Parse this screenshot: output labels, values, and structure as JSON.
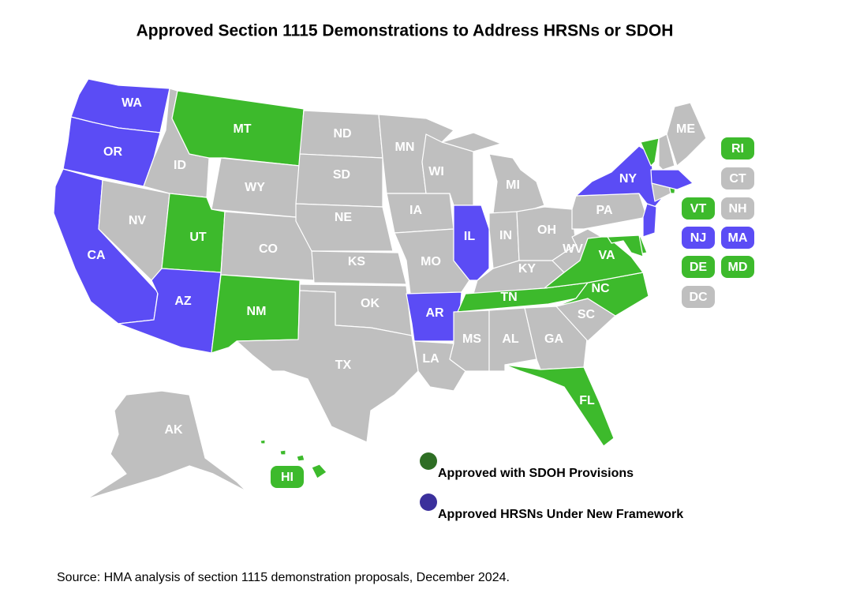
{
  "title": "Approved Section 1115 Demonstrations to Address HRSNs or SDOH",
  "status_colors": {
    "sdoh": "#3dba2c",
    "hrsn": "#5b4cf5",
    "none": "#bfbfbf"
  },
  "states": [
    {
      "name": "WA",
      "status": "hrsn"
    },
    {
      "name": "OR",
      "status": "hrsn"
    },
    {
      "name": "CA",
      "status": "hrsn"
    },
    {
      "name": "NV",
      "status": "none"
    },
    {
      "name": "ID",
      "status": "none"
    },
    {
      "name": "MT",
      "status": "sdoh"
    },
    {
      "name": "WY",
      "status": "none"
    },
    {
      "name": "UT",
      "status": "sdoh"
    },
    {
      "name": "CO",
      "status": "none"
    },
    {
      "name": "AZ",
      "status": "hrsn"
    },
    {
      "name": "NM",
      "status": "sdoh"
    },
    {
      "name": "ND",
      "status": "none"
    },
    {
      "name": "SD",
      "status": "none"
    },
    {
      "name": "NE",
      "status": "none"
    },
    {
      "name": "KS",
      "status": "none"
    },
    {
      "name": "OK",
      "status": "none"
    },
    {
      "name": "TX",
      "status": "none"
    },
    {
      "name": "MN",
      "status": "none"
    },
    {
      "name": "IA",
      "status": "none"
    },
    {
      "name": "MO",
      "status": "none"
    },
    {
      "name": "AR",
      "status": "hrsn"
    },
    {
      "name": "LA",
      "status": "none"
    },
    {
      "name": "WI",
      "status": "none"
    },
    {
      "name": "IL",
      "status": "hrsn"
    },
    {
      "name": "MI",
      "status": "none"
    },
    {
      "name": "IN",
      "status": "none"
    },
    {
      "name": "OH",
      "status": "none"
    },
    {
      "name": "KY",
      "status": "none"
    },
    {
      "name": "TN",
      "status": "sdoh"
    },
    {
      "name": "MS",
      "status": "none"
    },
    {
      "name": "AL",
      "status": "none"
    },
    {
      "name": "GA",
      "status": "none"
    },
    {
      "name": "FL",
      "status": "sdoh"
    },
    {
      "name": "SC",
      "status": "none"
    },
    {
      "name": "NC",
      "status": "sdoh"
    },
    {
      "name": "VA",
      "status": "sdoh"
    },
    {
      "name": "WV",
      "status": "none"
    },
    {
      "name": "PA",
      "status": "none"
    },
    {
      "name": "NY",
      "status": "hrsn"
    },
    {
      "name": "ME",
      "status": "none"
    },
    {
      "name": "AK",
      "status": "none"
    }
  ],
  "callouts": [
    {
      "name": "RI",
      "status": "sdoh"
    },
    {
      "name": "CT",
      "status": "none"
    },
    {
      "name": "VT",
      "status": "sdoh"
    },
    {
      "name": "NH",
      "status": "none"
    },
    {
      "name": "NJ",
      "status": "hrsn"
    },
    {
      "name": "MA",
      "status": "hrsn"
    },
    {
      "name": "DE",
      "status": "sdoh"
    },
    {
      "name": "MD",
      "status": "sdoh"
    },
    {
      "name": "DC",
      "status": "none"
    },
    {
      "name": "HI",
      "status": "sdoh"
    }
  ],
  "legend": [
    {
      "label": "Approved with SDOH Provisions",
      "color": "#2e6e24"
    },
    {
      "label": "Approved HRSNs Under New Framework",
      "color": "#3b309c"
    }
  ],
  "source": "Source: HMA analysis of section 1115 demonstration proposals, December 2024."
}
